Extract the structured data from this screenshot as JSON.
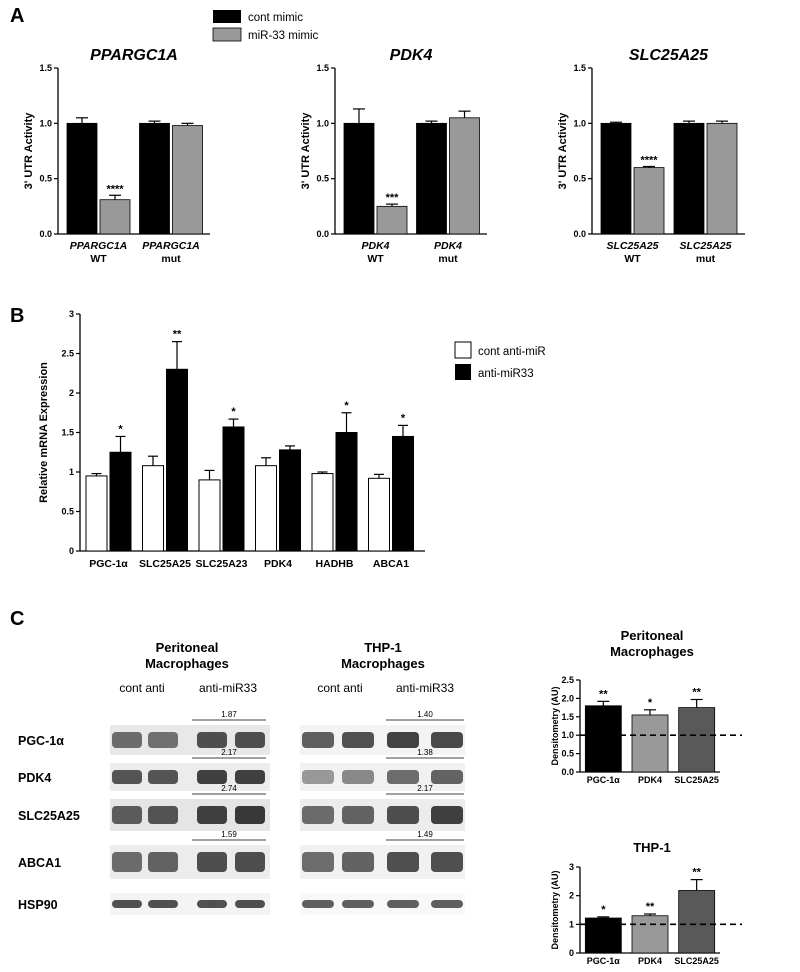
{
  "panel_a": {
    "letter": "A",
    "legend": [
      {
        "label": "cont mimic",
        "color": "#000000"
      },
      {
        "label": "miR-33 mimic",
        "color": "#999999"
      }
    ]
  },
  "panel_b": {
    "letter": "B"
  },
  "panel_c": {
    "letter": "C",
    "blots": {
      "peritoneal_title": [
        "Peritoneal",
        "Macrophages"
      ],
      "thp1_title": [
        "THP-1",
        "Macrophages"
      ],
      "group_labels": [
        "cont anti",
        "anti-miR33"
      ],
      "rows": [
        "PGC-1α",
        "PDK4",
        "SLC25A25",
        "ABCA1",
        "HSP90"
      ],
      "peritoneal_ratios": [
        "1.87",
        "2.17",
        "2.74",
        "1.59"
      ],
      "thp1_ratios": [
        "1.40",
        "1.38",
        "2.17",
        "1.49"
      ]
    }
  },
  "colors": {
    "black": "#000000",
    "gray": "#999999",
    "dark_gray": "#595959"
  },
  "chart_data": [
    {
      "id": "a1",
      "type": "bar",
      "title": "PPARGC1A",
      "ylabel": "3' UTR Activity",
      "ylim": [
        0,
        1.5
      ],
      "yticks": [
        "0.0",
        "0.5",
        "1.0",
        "1.5"
      ],
      "categories": [
        [
          "PPARGC1A",
          "WT"
        ],
        [
          "PPARGC1A",
          "mut"
        ]
      ],
      "series": [
        {
          "name": "cont mimic",
          "values": [
            1.0,
            1.0
          ],
          "errors": [
            0.05,
            0.02
          ],
          "color": "#000000"
        },
        {
          "name": "miR-33 mimic",
          "values": [
            0.31,
            0.98
          ],
          "errors": [
            0.04,
            0.02
          ],
          "color": "#999999"
        }
      ],
      "annotations": [
        {
          "category": 0,
          "series": 1,
          "text": "****"
        }
      ]
    },
    {
      "id": "a2",
      "type": "bar",
      "title": "PDK4",
      "ylabel": "3' UTR Activity",
      "ylim": [
        0,
        1.5
      ],
      "yticks": [
        "0.0",
        "0.5",
        "1.0",
        "1.5"
      ],
      "categories": [
        [
          "PDK4",
          "WT"
        ],
        [
          "PDK4",
          "mut"
        ]
      ],
      "series": [
        {
          "name": "cont mimic",
          "values": [
            1.0,
            1.0
          ],
          "errors": [
            0.13,
            0.02
          ],
          "color": "#000000"
        },
        {
          "name": "miR-33 mimic",
          "values": [
            0.25,
            1.05
          ],
          "errors": [
            0.02,
            0.06
          ],
          "color": "#999999"
        }
      ],
      "annotations": [
        {
          "category": 0,
          "series": 1,
          "text": "***"
        }
      ]
    },
    {
      "id": "a3",
      "type": "bar",
      "title": "SLC25A25",
      "ylabel": "3' UTR Activity",
      "ylim": [
        0,
        1.5
      ],
      "yticks": [
        "0.0",
        "0.5",
        "1.0",
        "1.5"
      ],
      "categories": [
        [
          "SLC25A25",
          "WT"
        ],
        [
          "SLC25A25",
          "mut"
        ]
      ],
      "series": [
        {
          "name": "cont mimic",
          "values": [
            1.0,
            1.0
          ],
          "errors": [
            0.01,
            0.02
          ],
          "color": "#000000"
        },
        {
          "name": "miR-33 mimic",
          "values": [
            0.6,
            1.0
          ],
          "errors": [
            0.01,
            0.02
          ],
          "color": "#999999"
        }
      ],
      "annotations": [
        {
          "category": 0,
          "series": 1,
          "text": "****"
        }
      ]
    },
    {
      "id": "b",
      "type": "bar",
      "title": "",
      "ylabel": "Relative mRNA Expression",
      "ylim": [
        0,
        3
      ],
      "yticks": [
        "0",
        "0.5",
        "1",
        "1.5",
        "2",
        "2.5",
        "3"
      ],
      "categories": [
        "PGC-1α",
        "SLC25A25",
        "SLC25A23",
        "PDK4",
        "HADHB",
        "ABCA1"
      ],
      "series": [
        {
          "name": "cont anti-miR",
          "values": [
            0.95,
            1.08,
            0.9,
            1.08,
            0.98,
            0.92
          ],
          "errors": [
            0.03,
            0.12,
            0.12,
            0.1,
            0.02,
            0.05
          ],
          "color": "#ffffff"
        },
        {
          "name": "anti-miR33",
          "values": [
            1.25,
            2.3,
            1.57,
            1.28,
            1.5,
            1.45
          ],
          "errors": [
            0.2,
            0.35,
            0.1,
            0.05,
            0.25,
            0.14
          ],
          "color": "#000000"
        }
      ],
      "annotations": [
        {
          "category": 0,
          "series": 1,
          "text": "*"
        },
        {
          "category": 1,
          "series": 1,
          "text": "**"
        },
        {
          "category": 2,
          "series": 1,
          "text": "*"
        },
        {
          "category": 4,
          "series": 1,
          "text": "*"
        },
        {
          "category": 5,
          "series": 1,
          "text": "*"
        }
      ]
    },
    {
      "id": "c1",
      "type": "bar",
      "title": "Peritoneal\nMacrophages",
      "ylabel": "Densitometry (AU)",
      "ylim": [
        0,
        2.5
      ],
      "yticks": [
        "0.0",
        "0.5",
        "1.0",
        "1.5",
        "2.0",
        "2.5"
      ],
      "categories": [
        "PGC-1α",
        "PDK4",
        "SLC25A25"
      ],
      "values": [
        1.8,
        1.55,
        1.75
      ],
      "errors": [
        0.12,
        0.14,
        0.22
      ],
      "colors": [
        "#000000",
        "#999999",
        "#595959"
      ],
      "reference_line": 1.0,
      "annotations": [
        "**",
        "*",
        "**"
      ]
    },
    {
      "id": "c2",
      "type": "bar",
      "title": "THP-1",
      "ylabel": "Densitometry (AU)",
      "ylim": [
        0,
        3
      ],
      "yticks": [
        "0",
        "1",
        "2",
        "3"
      ],
      "categories": [
        "PGC-1α",
        "PDK4",
        "SLC25A25"
      ],
      "values": [
        1.22,
        1.3,
        2.18
      ],
      "errors": [
        0.04,
        0.06,
        0.38
      ],
      "colors": [
        "#000000",
        "#999999",
        "#595959"
      ],
      "reference_line": 1.0,
      "annotations": [
        "*",
        "**",
        "**"
      ]
    }
  ]
}
